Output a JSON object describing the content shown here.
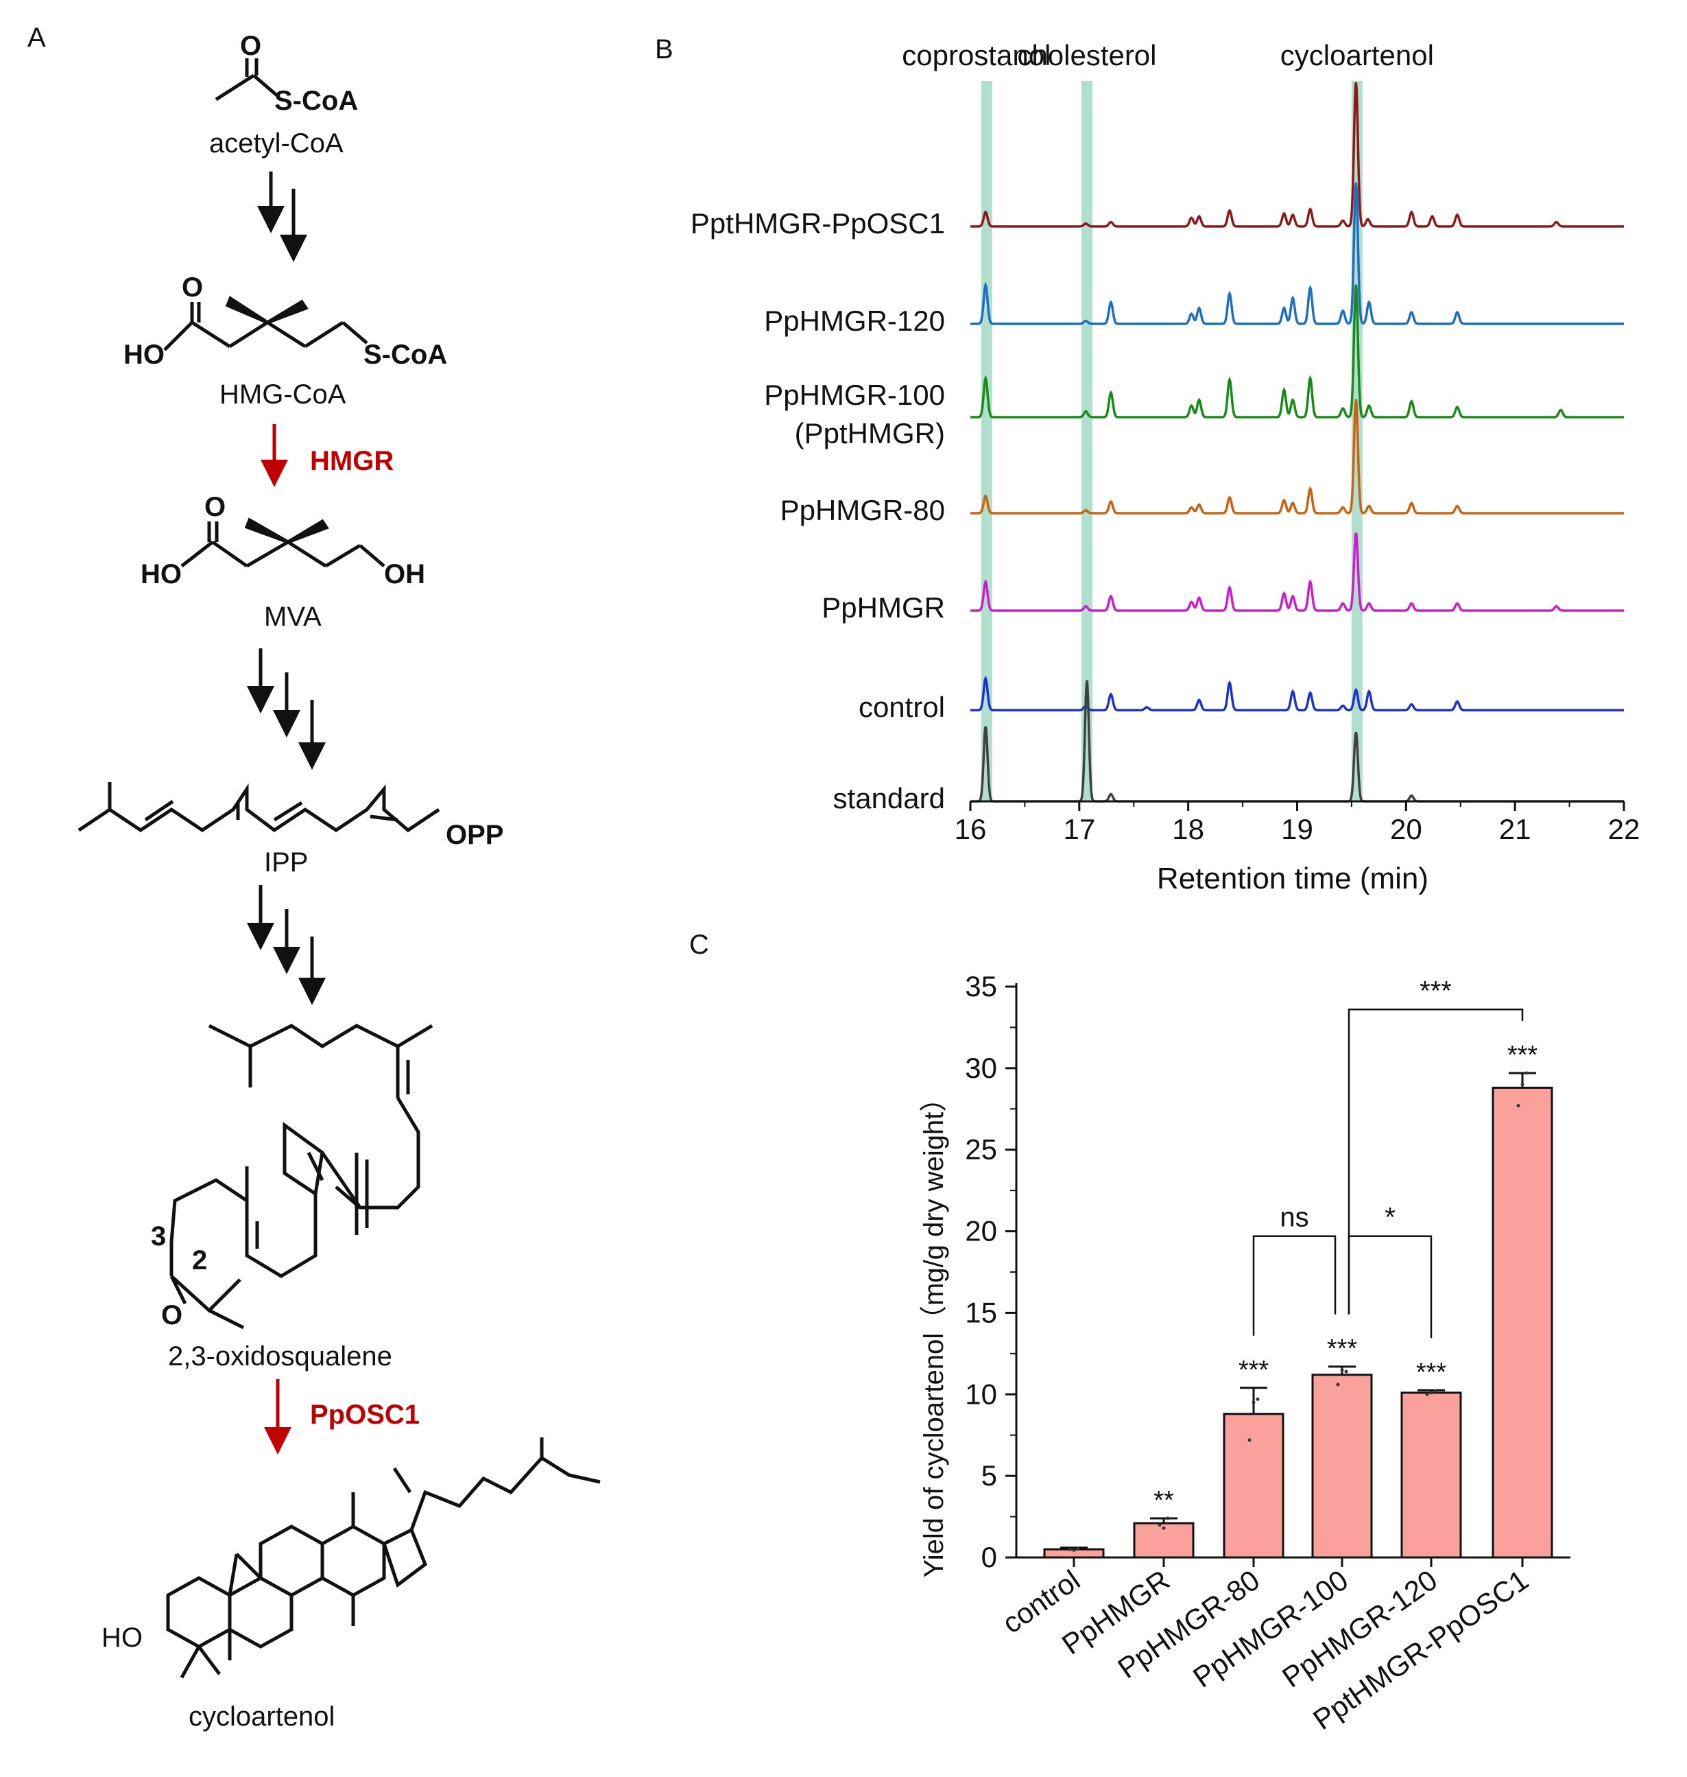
{
  "panels": {
    "a": "A",
    "b": "B",
    "c": "C"
  },
  "pathway": {
    "compounds": [
      "acetyl-CoA",
      "HMG-CoA",
      "MVA",
      "IPP",
      "2,3-oxidosqualene",
      "cycloartenol"
    ],
    "enzymes": [
      "HMGR",
      "PpOSC1"
    ],
    "atom_labels": {
      "o": "O",
      "s_coa": "S-CoA",
      "ho": "HO",
      "oh": "OH",
      "opp": "OPP",
      "num3": "3",
      "num2": "2"
    },
    "enzyme_color": "#c00000"
  },
  "chart_data": [
    {
      "type": "line",
      "panel": "B",
      "xlabel": "Retention time (min)",
      "xlim": [
        16,
        22
      ],
      "xticks": [
        16,
        17,
        18,
        19,
        20,
        21,
        22
      ],
      "peak_labels": [
        "coprostanol",
        "cholesterol",
        "cycloartenol"
      ],
      "highlight_rt": [
        16.15,
        17.07,
        19.55
      ],
      "highlight_color": "#a8dcc8",
      "series": [
        {
          "name": "PptHMGR-PpOSC1",
          "color": "#8b1a1a",
          "peaks": [
            [
              16.14,
              0.1
            ],
            [
              17.06,
              0.02
            ],
            [
              17.29,
              0.03
            ],
            [
              18.03,
              0.06
            ],
            [
              18.1,
              0.07
            ],
            [
              18.38,
              0.11
            ],
            [
              18.88,
              0.09
            ],
            [
              18.96,
              0.08
            ],
            [
              19.12,
              0.12
            ],
            [
              19.42,
              0.04
            ],
            [
              19.54,
              1.0
            ],
            [
              19.65,
              0.05
            ],
            [
              20.05,
              0.1
            ],
            [
              20.24,
              0.07
            ],
            [
              20.47,
              0.08
            ],
            [
              21.38,
              0.03
            ]
          ]
        },
        {
          "name": "PpHMGR-120",
          "color": "#1f6fbf",
          "peaks": [
            [
              16.14,
              0.27
            ],
            [
              17.06,
              0.02
            ],
            [
              17.29,
              0.15
            ],
            [
              18.03,
              0.07
            ],
            [
              18.1,
              0.11
            ],
            [
              18.38,
              0.21
            ],
            [
              18.88,
              0.11
            ],
            [
              18.96,
              0.18
            ],
            [
              19.12,
              0.25
            ],
            [
              19.42,
              0.09
            ],
            [
              19.54,
              0.98
            ],
            [
              19.66,
              0.15
            ],
            [
              20.05,
              0.08
            ],
            [
              20.47,
              0.08
            ]
          ]
        },
        {
          "name": "PpHMGR-100\n(PptHMGR)",
          "color": "#1a8a1a",
          "peaks": [
            [
              16.14,
              0.27
            ],
            [
              17.06,
              0.04
            ],
            [
              17.29,
              0.17
            ],
            [
              18.03,
              0.08
            ],
            [
              18.1,
              0.12
            ],
            [
              18.38,
              0.26
            ],
            [
              18.88,
              0.19
            ],
            [
              18.96,
              0.12
            ],
            [
              19.12,
              0.27
            ],
            [
              19.42,
              0.06
            ],
            [
              19.54,
              0.92
            ],
            [
              19.66,
              0.08
            ],
            [
              20.05,
              0.11
            ],
            [
              20.47,
              0.07
            ],
            [
              21.42,
              0.05
            ]
          ]
        },
        {
          "name": "PpHMGR-80",
          "color": "#c86414",
          "peaks": [
            [
              16.14,
              0.12
            ],
            [
              17.06,
              0.02
            ],
            [
              17.29,
              0.08
            ],
            [
              18.03,
              0.04
            ],
            [
              18.1,
              0.06
            ],
            [
              18.38,
              0.11
            ],
            [
              18.88,
              0.09
            ],
            [
              18.96,
              0.07
            ],
            [
              19.12,
              0.17
            ],
            [
              19.42,
              0.04
            ],
            [
              19.54,
              0.79
            ],
            [
              19.66,
              0.05
            ],
            [
              20.05,
              0.07
            ],
            [
              20.47,
              0.05
            ]
          ]
        },
        {
          "name": "PpHMGR",
          "color": "#cc1ecc",
          "peaks": [
            [
              16.14,
              0.2
            ],
            [
              17.06,
              0.03
            ],
            [
              17.29,
              0.1
            ],
            [
              18.03,
              0.06
            ],
            [
              18.1,
              0.09
            ],
            [
              18.38,
              0.16
            ],
            [
              18.88,
              0.12
            ],
            [
              18.96,
              0.1
            ],
            [
              19.12,
              0.2
            ],
            [
              19.42,
              0.05
            ],
            [
              19.54,
              0.54
            ],
            [
              19.66,
              0.05
            ],
            [
              20.05,
              0.05
            ],
            [
              20.47,
              0.05
            ],
            [
              21.38,
              0.03
            ]
          ]
        },
        {
          "name": "control",
          "color": "#1e32c8",
          "peaks": [
            [
              16.14,
              0.22
            ],
            [
              17.06,
              0.03
            ],
            [
              17.29,
              0.11
            ],
            [
              17.62,
              0.02
            ],
            [
              18.1,
              0.07
            ],
            [
              18.38,
              0.19
            ],
            [
              18.96,
              0.13
            ],
            [
              19.12,
              0.12
            ],
            [
              19.42,
              0.03
            ],
            [
              19.54,
              0.14
            ],
            [
              19.66,
              0.13
            ],
            [
              20.05,
              0.04
            ],
            [
              20.47,
              0.06
            ]
          ]
        },
        {
          "name": "standard",
          "color": "#404040",
          "peaks": [
            [
              16.14,
              0.52
            ],
            [
              17.07,
              0.84
            ],
            [
              17.29,
              0.05
            ],
            [
              19.54,
              0.48
            ],
            [
              20.05,
              0.04
            ]
          ]
        }
      ]
    },
    {
      "type": "bar",
      "panel": "C",
      "ylabel": "Yield of cycloartenol（mg/g dry weight）",
      "ylim": [
        0,
        35
      ],
      "yticks": [
        0,
        5,
        10,
        15,
        20,
        25,
        30,
        35
      ],
      "bar_color": "#f9a19a",
      "categories": [
        "control",
        "PpHMGR",
        "PpHMGR-80",
        "PpHMGR-100",
        "PpHMGR-120",
        "PptHMGR-PpOSC1"
      ],
      "values": [
        0.5,
        2.1,
        8.8,
        11.2,
        10.1,
        28.8
      ],
      "errors": [
        0.1,
        0.3,
        1.6,
        0.5,
        0.15,
        0.9
      ],
      "points": [
        [
          0.5,
          0.45,
          0.55
        ],
        [
          2.0,
          1.8,
          2.4
        ],
        [
          7.2,
          9.5,
          9.7
        ],
        [
          10.6,
          11.5,
          11.4
        ],
        [
          10.0,
          10.1,
          10.2
        ],
        [
          27.7,
          29.0,
          29.7
        ]
      ],
      "significance": [
        "",
        "**",
        "***",
        "***",
        "***",
        "***"
      ],
      "comparisons": [
        {
          "from": 2,
          "to": 3,
          "label": "ns",
          "y": 19.7
        },
        {
          "from": 3,
          "to": 4,
          "label": "*",
          "y": 19.7
        },
        {
          "from": 3,
          "to": 5,
          "label": "***",
          "y": 33.6
        }
      ]
    }
  ]
}
